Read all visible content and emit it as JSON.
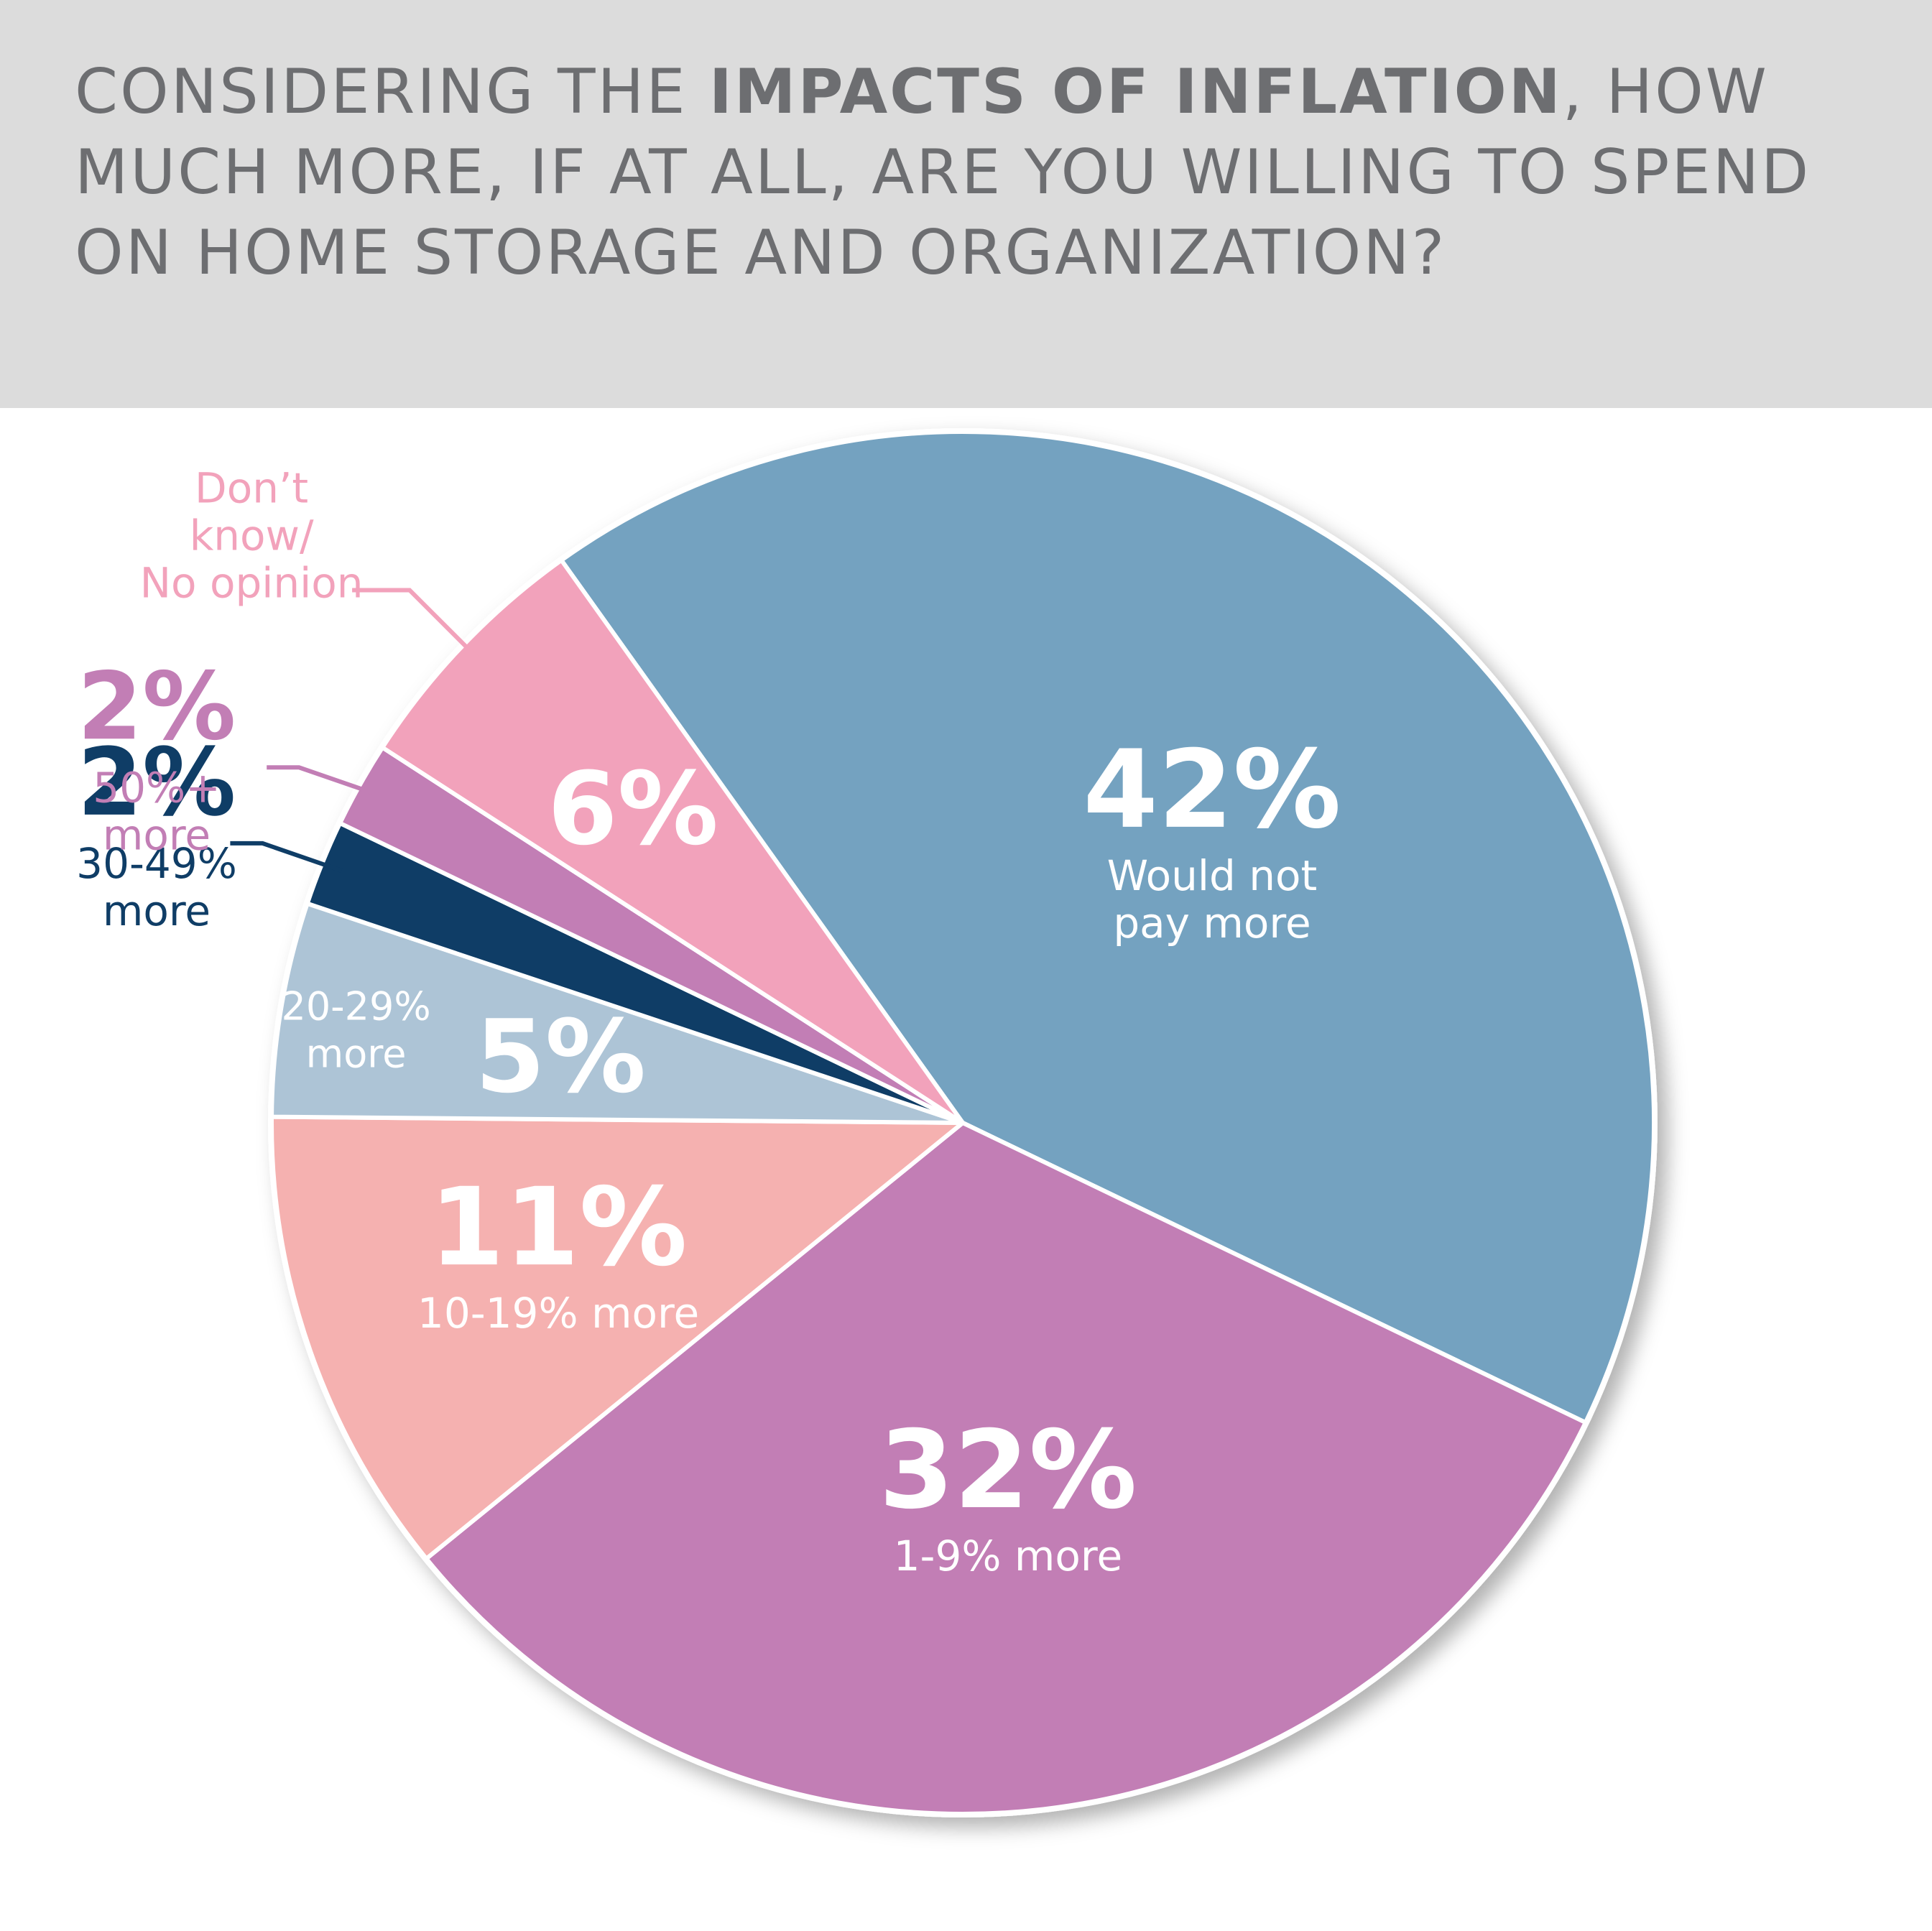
{
  "title": {
    "before": "Considering the ",
    "bold": "impacts of inflation",
    "after": ", how much more, if at all, are you willing to spend on home storage and organization?"
  },
  "chart_data": {
    "type": "pie",
    "title": "Considering the impacts of inflation, how much more, if at all, are you willing to spend on home storage and organization?",
    "slices": [
      {
        "value": 42,
        "value_label": "42%",
        "label_lines": [
          "Would not",
          "pay more"
        ],
        "color": "#74a2c0",
        "label_color": "#ffffff"
      },
      {
        "value": 32,
        "value_label": "32%",
        "label_lines": [
          "1-9% more"
        ],
        "color": "#c27eb5",
        "label_color": "#ffffff"
      },
      {
        "value": 11,
        "value_label": "11%",
        "label_lines": [
          "10-19% more"
        ],
        "color": "#f5b1b0",
        "label_color": "#ffffff"
      },
      {
        "value": 5,
        "value_label": "5%",
        "label_lines": [
          "20-29%",
          "more"
        ],
        "color": "#adc4d6",
        "label_color": "#ffffff"
      },
      {
        "value": 2,
        "value_label": "2%",
        "label_lines": [
          "30-49%",
          "more"
        ],
        "color": "#0f3d66",
        "label_color": "#0f3d66"
      },
      {
        "value": 2,
        "value_label": "2%",
        "label_lines": [
          "50%+",
          "more"
        ],
        "color": "#c27eb5",
        "label_color": "#c27eb5"
      },
      {
        "value": 6,
        "value_label": "6%",
        "label_lines": [
          "Don’t",
          "know/",
          "No opinion"
        ],
        "color": "#f2a2bb",
        "label_color": "#f2a2bb"
      }
    ]
  }
}
